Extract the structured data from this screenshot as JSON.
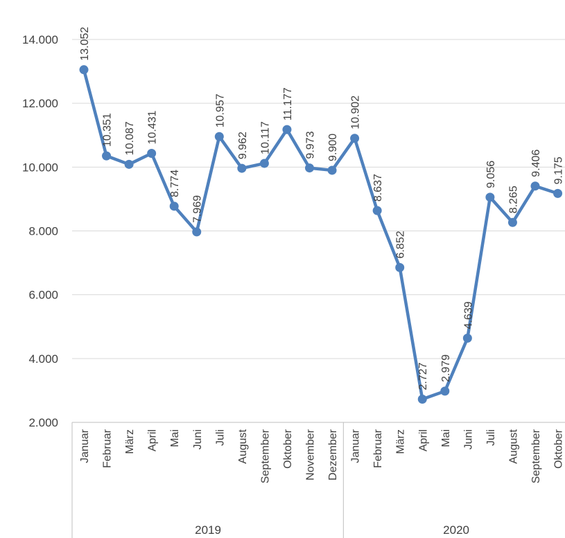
{
  "chart_data": {
    "type": "line",
    "title": "",
    "xlabel": "",
    "ylabel": "",
    "ylim": [
      2000,
      14000
    ],
    "ytick_labels": [
      "2.000",
      "4.000",
      "6.000",
      "8.000",
      "10.000",
      "12.000",
      "14.000"
    ],
    "grid": true,
    "legend": "none",
    "colors": {
      "series": "#4f81bd",
      "grid": "#d9d9d9",
      "axis": "#bfbfbf",
      "text": "#404040"
    },
    "groups": [
      {
        "label": "2019",
        "months": [
          "Januar",
          "Februar",
          "März",
          "April",
          "Mai",
          "Juni",
          "Juli",
          "August",
          "September",
          "Oktober",
          "November",
          "Dezember"
        ]
      },
      {
        "label": "2020",
        "months": [
          "Januar",
          "Februar",
          "März",
          "April",
          "Mai",
          "Juni",
          "Juli",
          "August",
          "September",
          "Oktober"
        ]
      }
    ],
    "series": [
      {
        "values": [
          13052,
          10351,
          10087,
          10431,
          8774,
          7969,
          10957,
          9962,
          10117,
          11177,
          9973,
          9900,
          10902,
          8637,
          6852,
          2727,
          2979,
          4639,
          9056,
          8265,
          9406,
          9175
        ],
        "labels": [
          "13.052",
          "10.351",
          "10.087",
          "10.431",
          "8.774",
          "7.969",
          "10.957",
          "9.962",
          "10.117",
          "11.177",
          "9.973",
          "9.900",
          "10.902",
          "8.637",
          "6.852",
          "2.727",
          "2.979",
          "4.639",
          "9.056",
          "8.265",
          "9.406",
          "9.175"
        ]
      }
    ]
  }
}
